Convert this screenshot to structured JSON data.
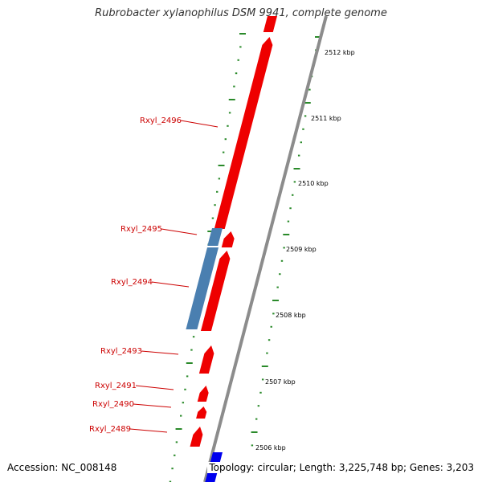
{
  "title": "Rubrobacter xylanophilus DSM 9941, complete genome",
  "accession": "Accession: NC_008148",
  "summary": "Topology: circular; Length: 3,225,748 bp; Genes: 3,203",
  "colors": {
    "forward_gene": "#ee0000",
    "rrna_feature": "#4a7fb0",
    "other_gene": "#0000ee",
    "backbone": "#8c8c8c",
    "tick": "#2a8a2a",
    "label": "#cc0000"
  },
  "scale_labels": [
    {
      "text": "2512 kbp",
      "kbp": 2512
    },
    {
      "text": "2511 kbp",
      "kbp": 2511
    },
    {
      "text": "2510 kbp",
      "kbp": 2510
    },
    {
      "text": "2509 kbp",
      "kbp": 2509
    },
    {
      "text": "2508 kbp",
      "kbp": 2508
    },
    {
      "text": "2507 kbp",
      "kbp": 2507
    },
    {
      "text": "2506 kbp",
      "kbp": 2506
    }
  ],
  "gene_labels": [
    {
      "text": "Rxyl_2496"
    },
    {
      "text": "Rxyl_2495"
    },
    {
      "text": "Rxyl_2494"
    },
    {
      "text": "Rxyl_2493"
    },
    {
      "text": "Rxyl_2491"
    },
    {
      "text": "Rxyl_2490"
    },
    {
      "text": "Rxyl_2489"
    }
  ]
}
